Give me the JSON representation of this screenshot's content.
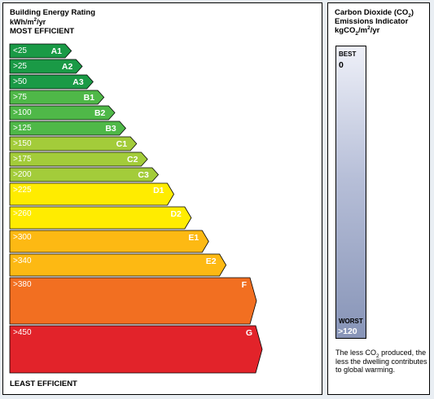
{
  "energy": {
    "title": "Building Energy Rating",
    "unit_prefix": "kWh/m",
    "unit_sup": "2",
    "unit_suffix": "/yr",
    "top_label": "MOST EFFICIENT",
    "bottom_label": "LEAST EFFICIENT"
  },
  "chart_data": {
    "type": "bar",
    "title": "Building Energy Rating",
    "categories": [
      "A1",
      "A2",
      "A3",
      "B1",
      "B2",
      "B3",
      "C1",
      "C2",
      "C3",
      "D1",
      "D2",
      "E1",
      "E2",
      "F",
      "G"
    ],
    "threshold_labels": [
      "<25",
      ">25",
      ">50",
      ">75",
      ">100",
      ">125",
      ">150",
      ">175",
      ">200",
      ">225",
      ">260",
      ">300",
      ">340",
      ">380",
      ">450"
    ],
    "values": [
      25,
      50,
      75,
      100,
      125,
      150,
      175,
      200,
      225,
      260,
      300,
      340,
      380,
      450,
      450
    ],
    "colors": [
      "#1a9a46",
      "#1a9a46",
      "#1a9a46",
      "#4fb848",
      "#4fb848",
      "#4fb848",
      "#a3cc3a",
      "#a3cc3a",
      "#a3cc3a",
      "#ffec00",
      "#ffec00",
      "#fdb913",
      "#fdb913",
      "#f26f21",
      "#e2232a"
    ]
  },
  "co2": {
    "title_a": "Carbon Dioxide (CO",
    "title_sub": "2",
    "title_b": ")",
    "line2": "Emissions Indicator",
    "unit_a": "kgCO",
    "unit_sub": "2",
    "unit_b": "/m",
    "unit_sup": "2",
    "unit_c": "/yr",
    "best_label": "BEST",
    "best_value": "0",
    "worst_label": "WORST",
    "worst_value": ">120",
    "note_a": "The less CO",
    "note_sub": "2",
    "note_b": " produced, the less the dwelling contributes to global warming."
  }
}
